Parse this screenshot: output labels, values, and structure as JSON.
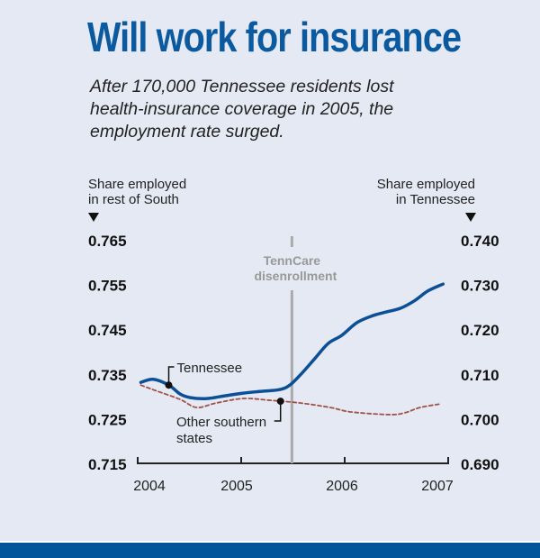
{
  "chart_data": {
    "type": "line",
    "title": "Will work for insurance",
    "subtitle": "After 170,000 Tennessee residents lost health-insurance coverage in 2005, the employment rate surged.",
    "left_axis_label": [
      "Share employed",
      "in rest of South"
    ],
    "right_axis_label": [
      "Share employed",
      "in Tennessee"
    ],
    "left_ylim": [
      0.715,
      0.765
    ],
    "right_ylim": [
      0.69,
      0.74
    ],
    "left_ticks": [
      "0.765",
      "0.755",
      "0.745",
      "0.735",
      "0.725",
      "0.715"
    ],
    "right_ticks": [
      "0.740",
      "0.730",
      "0.720",
      "0.710",
      "0.700",
      "0.690"
    ],
    "xlim": [
      2004,
      2007
    ],
    "x_ticks": [
      2004,
      2005,
      2006,
      2007
    ],
    "x_tick_labels": [
      "2004",
      "2005",
      "2006",
      "2007"
    ],
    "annotation": {
      "label": [
        "TennCare",
        "disenrollment"
      ],
      "x": 2005.49
    },
    "series": [
      {
        "name": "Tennessee",
        "axis": "right",
        "color": "#0b4f96",
        "style": "solid",
        "marker_x": 2004.3,
        "x": [
          2004.03,
          2004.15,
          2004.3,
          2004.41,
          2004.51,
          2004.67,
          2004.84,
          2005.02,
          2005.19,
          2005.37,
          2005.47,
          2005.58,
          2005.71,
          2005.84,
          2005.97,
          2006.12,
          2006.28,
          2006.41,
          2006.54,
          2006.67,
          2006.8,
          2006.93,
          2006.95
        ],
        "y": [
          0.7081,
          0.7088,
          0.7075,
          0.7055,
          0.7047,
          0.7045,
          0.7051,
          0.7057,
          0.7061,
          0.7065,
          0.7075,
          0.71,
          0.7134,
          0.7168,
          0.7186,
          0.7215,
          0.7231,
          0.7239,
          0.7247,
          0.7263,
          0.7285,
          0.7299,
          0.7301
        ]
      },
      {
        "name": "Other southern states",
        "label_lines": [
          "Other southern",
          "states"
        ],
        "axis": "left",
        "color": "#a0524a",
        "style": "dashed",
        "marker_x": 2005.38,
        "x": [
          2004.03,
          2004.17,
          2004.41,
          2004.57,
          2004.76,
          2005.02,
          2005.28,
          2005.57,
          2005.86,
          2006.06,
          2006.43,
          2006.58,
          2006.73,
          2006.93
        ],
        "y": [
          0.7325,
          0.7313,
          0.7293,
          0.7275,
          0.7285,
          0.7295,
          0.7291,
          0.7285,
          0.7275,
          0.7265,
          0.7259,
          0.7263,
          0.7275,
          0.7283
        ]
      }
    ]
  }
}
